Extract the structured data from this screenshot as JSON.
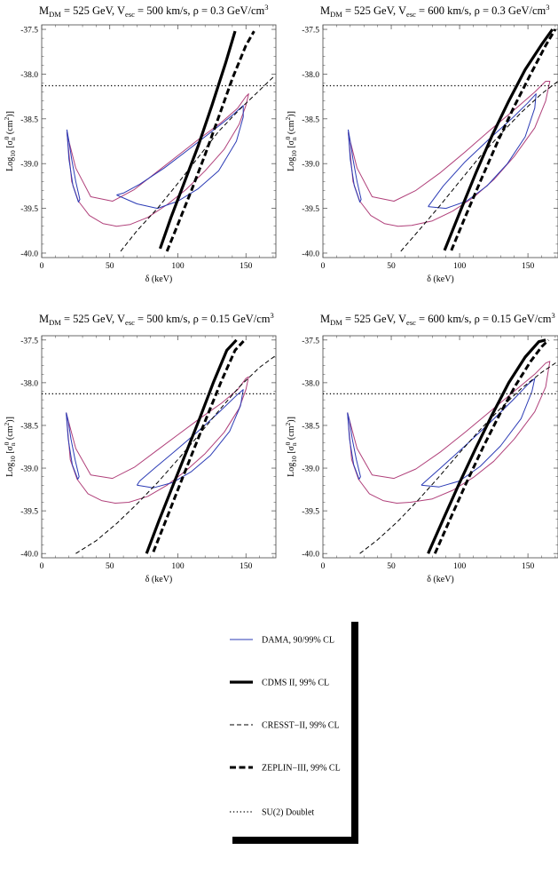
{
  "chart_data": [
    {
      "type": "line",
      "title": "M_DM = 525 GeV, V_esc = 500 km/s, ρ = 0.3 GeV/cm³",
      "title_parts": {
        "m": "M",
        "m_sub": "DM",
        "m_val": " = 525 GeV, V",
        "v_sub": "esc",
        "v_val": " = 500 km/s, ρ = 0.3 GeV/cm",
        "sup": "3"
      },
      "xlabel": "δ (keV)",
      "ylabel_parts": {
        "a": "Log",
        "a_sub": "10",
        "b": " [σ",
        "b_sub": "n",
        "b_sup": "0",
        "c": " (cm",
        "c_sup": "2",
        "d": ")]"
      },
      "xlim": [
        0,
        172
      ],
      "ylim": [
        -40.05,
        -37.45
      ],
      "xticks": [
        "0",
        "50",
        "100",
        "150"
      ],
      "xtick_values": [
        0,
        50,
        100,
        150
      ],
      "yticks": [
        "-37.5",
        "-38.0",
        "-38.5",
        "-39.0",
        "-39.5",
        "-40.0"
      ],
      "ytick_values": [
        -37.5,
        -38.0,
        -38.5,
        -39.0,
        -39.5,
        -40.0
      ],
      "series": [
        {
          "style": "dama99",
          "x": [
            18.5,
            22,
            27,
            35,
            45,
            55,
            65,
            78,
            92,
            106,
            120,
            134,
            145,
            150,
            152,
            150,
            144,
            132,
            116,
            100,
            84,
            68,
            52,
            36,
            25,
            20,
            18.5
          ],
          "y": [
            -38.65,
            -39.2,
            -39.42,
            -39.58,
            -39.67,
            -39.7,
            -39.68,
            -39.6,
            -39.46,
            -39.29,
            -39.08,
            -38.84,
            -38.56,
            -38.35,
            -38.22,
            -38.25,
            -38.38,
            -38.54,
            -38.72,
            -38.91,
            -39.1,
            -39.29,
            -39.42,
            -39.37,
            -39.05,
            -38.75,
            -38.65
          ]
        },
        {
          "style": "dama90",
          "x": [
            18.5,
            20,
            23,
            27,
            28,
            25,
            22,
            20,
            18.5
          ],
          "y": [
            -38.62,
            -38.95,
            -39.25,
            -39.43,
            -39.4,
            -39.2,
            -38.95,
            -38.75,
            -38.62
          ]
        },
        {
          "style": "dama90",
          "x": [
            55,
            70,
            85,
            100,
            115,
            130,
            143,
            148,
            148,
            140,
            125,
            108,
            90,
            72,
            60,
            55
          ],
          "y": [
            -39.35,
            -39.45,
            -39.5,
            -39.42,
            -39.28,
            -39.08,
            -38.75,
            -38.48,
            -38.35,
            -38.46,
            -38.64,
            -38.84,
            -39.05,
            -39.23,
            -39.33,
            -39.35
          ]
        },
        {
          "style": "cdms",
          "x": [
            87,
            95,
            105,
            115,
            125,
            135,
            142
          ],
          "y": [
            -39.95,
            -39.6,
            -39.2,
            -38.8,
            -38.35,
            -37.88,
            -37.52
          ]
        },
        {
          "style": "zeplin",
          "x": [
            92,
            100,
            110,
            120,
            130,
            140,
            150,
            156
          ],
          "y": [
            -39.98,
            -39.68,
            -39.3,
            -38.9,
            -38.48,
            -38.05,
            -37.68,
            -37.52
          ]
        },
        {
          "style": "cresst",
          "x": [
            58,
            70,
            85,
            100,
            115,
            130,
            145,
            160,
            171
          ],
          "y": [
            -39.98,
            -39.75,
            -39.5,
            -39.22,
            -38.93,
            -38.64,
            -38.4,
            -38.18,
            -38.02
          ]
        },
        {
          "style": "su2",
          "x": [
            0,
            172
          ],
          "y": [
            -38.13,
            -38.13
          ]
        }
      ]
    },
    {
      "type": "line",
      "title": "M_DM = 525 GeV, V_esc = 600 km/s, ρ = 0.3 GeV/cm³",
      "title_parts": {
        "m": "M",
        "m_sub": "DM",
        "m_val": " = 525 GeV, V",
        "v_sub": "esc",
        "v_val": " = 600 km/s, ρ = 0.3 GeV/cm",
        "sup": "3"
      },
      "xlabel": "δ (keV)",
      "ylabel_parts": {
        "a": "Log",
        "a_sub": "10",
        "b": " [σ",
        "b_sub": "n",
        "b_sup": "0",
        "c": " (cm",
        "c_sup": "2",
        "d": ")]"
      },
      "xlim": [
        0,
        172
      ],
      "ylim": [
        -40.05,
        -37.45
      ],
      "xticks": [
        "0",
        "50",
        "100",
        "150"
      ],
      "xtick_values": [
        0,
        50,
        100,
        150
      ],
      "yticks": [
        "-37.5",
        "-38.0",
        "-38.5",
        "-39.0",
        "-39.5",
        "-40.0"
      ],
      "ytick_values": [
        -37.5,
        -38.0,
        -38.5,
        -39.0,
        -39.5,
        -40.0
      ],
      "series": [
        {
          "style": "dama99",
          "x": [
            18.5,
            22,
            27,
            35,
            45,
            55,
            65,
            80,
            95,
            110,
            125,
            140,
            155,
            163,
            166,
            163,
            155,
            140,
            122,
            104,
            86,
            68,
            52,
            36,
            25,
            20,
            18.5
          ],
          "y": [
            -38.65,
            -39.2,
            -39.42,
            -39.58,
            -39.67,
            -39.7,
            -39.69,
            -39.64,
            -39.53,
            -39.38,
            -39.18,
            -38.92,
            -38.6,
            -38.3,
            -38.08,
            -38.08,
            -38.2,
            -38.4,
            -38.63,
            -38.87,
            -39.1,
            -39.3,
            -39.42,
            -39.37,
            -39.05,
            -38.75,
            -38.65
          ]
        },
        {
          "style": "dama90",
          "x": [
            18.5,
            20,
            23,
            27,
            28,
            25,
            22,
            20,
            18.5
          ],
          "y": [
            -38.62,
            -38.95,
            -39.25,
            -39.43,
            -39.4,
            -39.2,
            -38.95,
            -38.75,
            -38.62
          ]
        },
        {
          "style": "dama90",
          "x": [
            77,
            90,
            105,
            120,
            135,
            148,
            155,
            156,
            150,
            138,
            122,
            104,
            88,
            77
          ],
          "y": [
            -39.48,
            -39.5,
            -39.42,
            -39.25,
            -39.0,
            -38.7,
            -38.38,
            -38.22,
            -38.32,
            -38.5,
            -38.72,
            -38.98,
            -39.25,
            -39.48
          ]
        },
        {
          "style": "cdms",
          "x": [
            89,
            100,
            112,
            124,
            136,
            148,
            160,
            168
          ],
          "y": [
            -39.97,
            -39.55,
            -39.1,
            -38.68,
            -38.3,
            -37.95,
            -37.67,
            -37.5
          ]
        },
        {
          "style": "zeplin",
          "x": [
            94,
            104,
            116,
            128,
            140,
            152,
            163,
            170
          ],
          "y": [
            -39.97,
            -39.6,
            -39.17,
            -38.75,
            -38.36,
            -38.0,
            -37.68,
            -37.5
          ]
        },
        {
          "style": "cresst",
          "x": [
            57,
            70,
            85,
            100,
            115,
            130,
            145,
            160,
            172
          ],
          "y": [
            -39.98,
            -39.75,
            -39.48,
            -39.2,
            -38.92,
            -38.67,
            -38.43,
            -38.22,
            -38.08
          ]
        },
        {
          "style": "su2",
          "x": [
            0,
            172
          ],
          "y": [
            -38.13,
            -38.13
          ]
        }
      ]
    },
    {
      "type": "line",
      "title": "M_DM = 525 GeV, V_esc = 500 km/s, ρ = 0.15 GeV/cm³",
      "title_parts": {
        "m": "M",
        "m_sub": "DM",
        "m_val": " = 525 GeV, V",
        "v_sub": "esc",
        "v_val": " = 500 km/s, ρ = 0.15 GeV/cm",
        "sup": "3"
      },
      "xlabel": "δ (keV)",
      "ylabel_parts": {
        "a": "Log",
        "a_sub": "10",
        "b": " [σ",
        "b_sub": "n",
        "b_sup": "0",
        "c": " (cm",
        "c_sup": "2",
        "d": ")]"
      },
      "xlim": [
        0,
        172
      ],
      "ylim": [
        -40.05,
        -37.45
      ],
      "xticks": [
        "0",
        "50",
        "100",
        "150"
      ],
      "xtick_values": [
        0,
        50,
        100,
        150
      ],
      "yticks": [
        "-37.5",
        "-38.0",
        "-38.5",
        "-39.0",
        "-39.5",
        "-40.0"
      ],
      "ytick_values": [
        -37.5,
        -38.0,
        -38.5,
        -39.0,
        -39.5,
        -40.0
      ],
      "series": [
        {
          "style": "dama99",
          "x": [
            18,
            21,
            26,
            34,
            44,
            54,
            64,
            78,
            92,
            106,
            120,
            134,
            145,
            150,
            152,
            150,
            144,
            132,
            116,
            100,
            84,
            68,
            52,
            36,
            25,
            20,
            18
          ],
          "y": [
            -38.35,
            -38.9,
            -39.13,
            -39.3,
            -39.38,
            -39.41,
            -39.4,
            -39.33,
            -39.2,
            -39.03,
            -38.83,
            -38.58,
            -38.3,
            -38.08,
            -37.93,
            -37.95,
            -38.08,
            -38.24,
            -38.42,
            -38.61,
            -38.8,
            -38.99,
            -39.12,
            -39.08,
            -38.77,
            -38.47,
            -38.35
          ]
        },
        {
          "style": "dama90",
          "x": [
            18,
            19.5,
            22.5,
            26.5,
            27.5,
            24.5,
            21.5,
            19.5,
            18
          ],
          "y": [
            -38.35,
            -38.66,
            -38.96,
            -39.13,
            -39.1,
            -38.9,
            -38.66,
            -38.45,
            -38.35
          ]
        },
        {
          "style": "dama90",
          "x": [
            70,
            82,
            96,
            110,
            124,
            138,
            146,
            148,
            143,
            130,
            114,
            98,
            83,
            72,
            70
          ],
          "y": [
            -39.2,
            -39.23,
            -39.17,
            -39.04,
            -38.85,
            -38.57,
            -38.27,
            -38.08,
            -38.15,
            -38.35,
            -38.58,
            -38.8,
            -39.0,
            -39.15,
            -39.2
          ]
        },
        {
          "style": "cdms",
          "x": [
            77,
            86,
            96,
            106,
            116,
            126,
            136,
            143
          ],
          "y": [
            -40.0,
            -39.62,
            -39.22,
            -38.82,
            -38.42,
            -38.0,
            -37.62,
            -37.5
          ]
        },
        {
          "style": "zeplin",
          "x": [
            82,
            92,
            102,
            112,
            122,
            132,
            142,
            149
          ],
          "y": [
            -39.98,
            -39.58,
            -39.17,
            -38.77,
            -38.37,
            -37.98,
            -37.62,
            -37.5
          ]
        },
        {
          "style": "cresst",
          "x": [
            25,
            40,
            55,
            70,
            85,
            100,
            115,
            130,
            145,
            160,
            172
          ],
          "y": [
            -40.0,
            -39.85,
            -39.65,
            -39.42,
            -39.17,
            -38.9,
            -38.62,
            -38.33,
            -38.05,
            -37.82,
            -37.68
          ]
        },
        {
          "style": "su2",
          "x": [
            0,
            172
          ],
          "y": [
            -38.13,
            -38.13
          ]
        }
      ]
    },
    {
      "type": "line",
      "title": "M_DM = 525 GeV, V_esc = 600 km/s, ρ = 0.15 GeV/cm³",
      "title_parts": {
        "m": "M",
        "m_sub": "DM",
        "m_val": " = 525 GeV, V",
        "v_sub": "esc",
        "v_val": " = 600 km/s, ρ = 0.15 GeV/cm",
        "sup": "3"
      },
      "xlabel": "δ (keV)",
      "ylabel_parts": {
        "a": "Log",
        "a_sub": "10",
        "b": " [σ",
        "b_sub": "n",
        "b_sup": "0",
        "c": " (cm",
        "c_sup": "2",
        "d": ")]"
      },
      "xlim": [
        0,
        172
      ],
      "ylim": [
        -40.05,
        -37.45
      ],
      "xticks": [
        "0",
        "50",
        "100",
        "150"
      ],
      "xtick_values": [
        0,
        50,
        100,
        150
      ],
      "yticks": [
        "-37.5",
        "-38.0",
        "-38.5",
        "-39.0",
        "-39.5",
        "-40.0"
      ],
      "ytick_values": [
        -37.5,
        -38.0,
        -38.5,
        -39.0,
        -39.5,
        -40.0
      ],
      "series": [
        {
          "style": "dama99",
          "x": [
            18,
            21,
            26,
            34,
            44,
            54,
            64,
            80,
            95,
            110,
            125,
            140,
            155,
            163,
            166,
            163,
            155,
            140,
            122,
            104,
            86,
            68,
            52,
            36,
            25,
            20,
            18
          ],
          "y": [
            -38.35,
            -38.9,
            -39.13,
            -39.3,
            -39.38,
            -39.41,
            -39.4,
            -39.36,
            -39.26,
            -39.11,
            -38.92,
            -38.66,
            -38.34,
            -38.05,
            -37.75,
            -37.77,
            -37.9,
            -38.1,
            -38.34,
            -38.58,
            -38.81,
            -39.01,
            -39.12,
            -39.08,
            -38.77,
            -38.47,
            -38.35
          ]
        },
        {
          "style": "dama90",
          "x": [
            18,
            19.5,
            22.5,
            26.5,
            27.5,
            24.5,
            21.5,
            19.5,
            18
          ],
          "y": [
            -38.35,
            -38.66,
            -38.96,
            -39.13,
            -39.1,
            -38.9,
            -38.66,
            -38.45,
            -38.35
          ]
        },
        {
          "style": "dama90",
          "x": [
            72,
            85,
            100,
            115,
            130,
            145,
            153,
            155,
            150,
            138,
            122,
            104,
            86,
            74,
            72
          ],
          "y": [
            -39.2,
            -39.22,
            -39.15,
            -38.98,
            -38.74,
            -38.42,
            -38.1,
            -37.95,
            -38.02,
            -38.22,
            -38.47,
            -38.74,
            -39.0,
            -39.17,
            -39.2
          ]
        },
        {
          "style": "cdms",
          "x": [
            77,
            88,
            100,
            112,
            124,
            136,
            148,
            158,
            163
          ],
          "y": [
            -40.0,
            -39.6,
            -39.17,
            -38.76,
            -38.37,
            -38.0,
            -37.7,
            -37.52,
            -37.5
          ]
        },
        {
          "style": "zeplin",
          "x": [
            82,
            93,
            105,
            117,
            129,
            141,
            152,
            160,
            165
          ],
          "y": [
            -40.0,
            -39.6,
            -39.17,
            -38.76,
            -38.38,
            -38.03,
            -37.75,
            -37.58,
            -37.5
          ]
        },
        {
          "style": "cresst",
          "x": [
            27,
            40,
            55,
            70,
            85,
            100,
            115,
            130,
            145,
            160,
            172
          ],
          "y": [
            -40.0,
            -39.84,
            -39.62,
            -39.37,
            -39.1,
            -38.82,
            -38.55,
            -38.3,
            -38.07,
            -37.88,
            -37.75
          ]
        },
        {
          "style": "su2",
          "x": [
            0,
            172
          ],
          "y": [
            -38.13,
            -38.13
          ]
        }
      ]
    }
  ],
  "legend": {
    "entries": [
      {
        "style": "dama90",
        "label": "DAMA, 90/99% CL"
      },
      {
        "style": "cdms",
        "label": "CDMS II, 99% CL"
      },
      {
        "style": "cresst",
        "label": "CRESST−II, 99% CL"
      },
      {
        "style": "zeplin",
        "label": "ZEPLIN−III, 99% CL"
      },
      {
        "style": "su2",
        "label": "SU(2) Doublet"
      }
    ]
  },
  "colors": {
    "dama90": "#2b3bb5",
    "dama99": "#b0407a",
    "ink": "#000000"
  }
}
